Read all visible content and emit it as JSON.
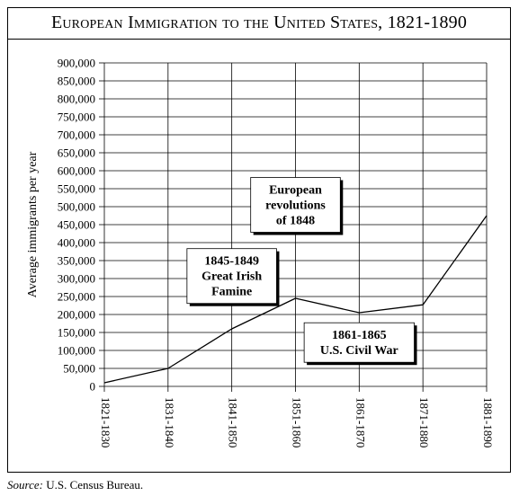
{
  "title": "European Immigration to the United States, 1821-1890",
  "source_label": "Source:",
  "source_text": "U.S. Census Bureau.",
  "chart_data": {
    "type": "line",
    "title": "European Immigration to the United States, 1821-1890",
    "xlabel": "",
    "ylabel": "Average immigrants per year",
    "categories": [
      "1821-1830",
      "1831-1840",
      "1841-1850",
      "1851-1860",
      "1861-1870",
      "1871-1880",
      "1881-1890"
    ],
    "values": [
      10000,
      50000,
      160000,
      245000,
      205000,
      227000,
      475000
    ],
    "ylim": [
      0,
      900000
    ],
    "yticks": [
      0,
      50000,
      100000,
      150000,
      200000,
      250000,
      300000,
      350000,
      400000,
      450000,
      500000,
      550000,
      600000,
      650000,
      700000,
      750000,
      800000,
      850000,
      900000
    ],
    "ytick_labels": [
      "0",
      "50,000",
      "100,000",
      "150,000",
      "200,000",
      "250,000",
      "300,000",
      "350,000",
      "400,000",
      "450,000",
      "500,000",
      "550,000",
      "600,000",
      "650,000",
      "700,000",
      "750,000",
      "800,000",
      "850,000",
      "900,000"
    ],
    "grid": true,
    "line_color": "#000000",
    "annotations": [
      {
        "lines": [
          "European",
          "revolutions",
          "of 1848"
        ],
        "x": "1851-1860",
        "y": 505000
      },
      {
        "lines": [
          "1845-1849",
          "Great Irish",
          "Famine"
        ],
        "x": "1841-1850",
        "y": 307000
      },
      {
        "lines": [
          "1861-1865",
          "U.S. Civil War"
        ],
        "x": "1861-1870",
        "y": 122000
      }
    ]
  }
}
